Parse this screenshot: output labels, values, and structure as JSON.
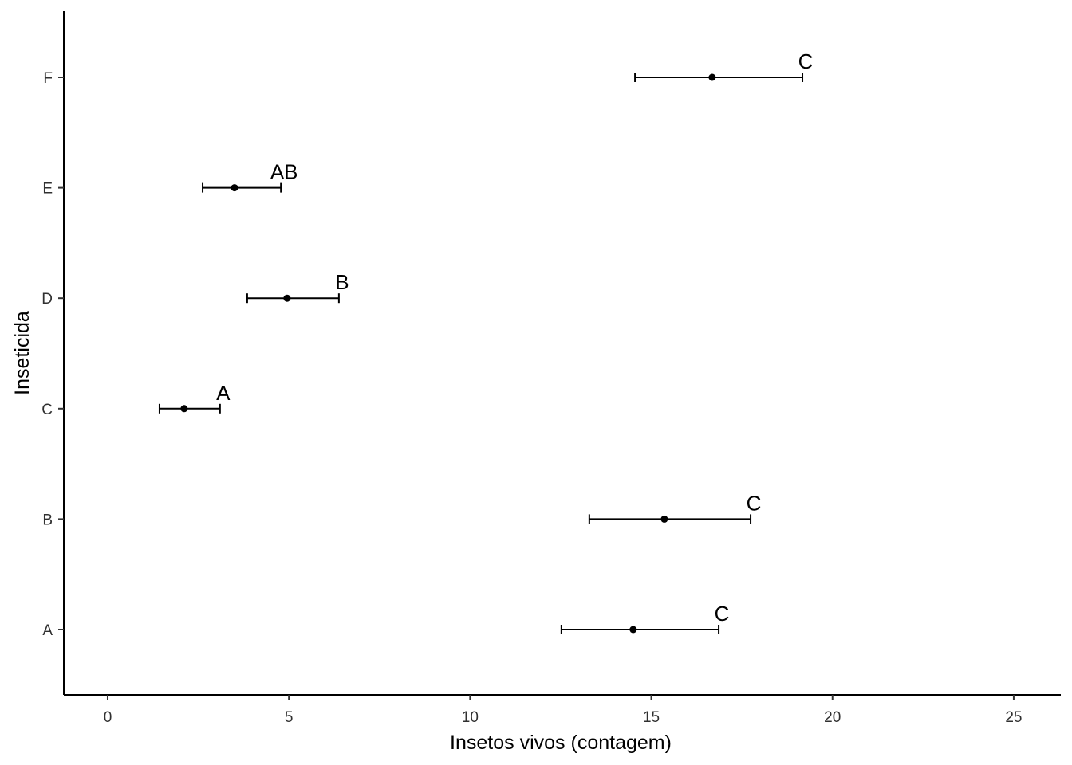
{
  "chart_data": {
    "type": "interval",
    "x_label": "Insetos vivos (contagem)",
    "y_label": "Inseticida",
    "categories": [
      "A",
      "B",
      "C",
      "D",
      "E",
      "F"
    ],
    "values": [
      14.5,
      15.36,
      2.11,
      4.95,
      3.5,
      16.68
    ],
    "lower": [
      12.52,
      13.29,
      1.43,
      3.85,
      2.62,
      14.55
    ],
    "upper": [
      16.86,
      17.74,
      3.1,
      6.38,
      4.78,
      19.17
    ],
    "group_letters": [
      "C",
      "C",
      "A",
      "B",
      "AB",
      "C"
    ],
    "color": "#000000",
    "xlim": [
      -1.21,
      26.3
    ],
    "xticks": [
      0,
      5,
      10,
      15,
      20,
      25
    ]
  }
}
